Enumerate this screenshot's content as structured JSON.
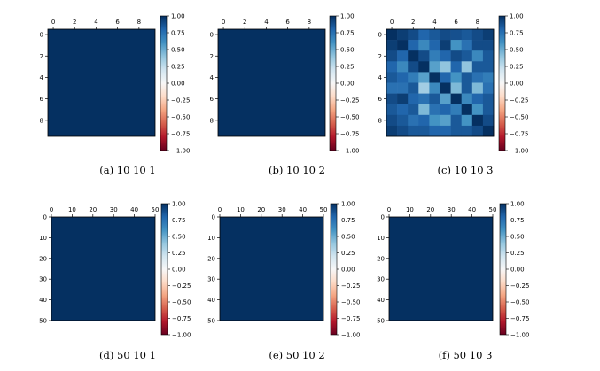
{
  "colormap": {
    "name": "RdBu",
    "stops": [
      "#67001f",
      "#b2182b",
      "#d6604d",
      "#f4a582",
      "#fddbc7",
      "#f7f7f7",
      "#d1e5f0",
      "#92c5de",
      "#4393c3",
      "#2166ac",
      "#053061"
    ]
  },
  "chart_data": [
    {
      "id": "a",
      "type": "heatmap",
      "caption": "(a) 10 10 1",
      "size": 10,
      "xticks": [
        "0",
        "2",
        "4",
        "6",
        "8"
      ],
      "yticks": [
        "0",
        "2",
        "4",
        "6",
        "8"
      ],
      "tick_values": [
        0,
        2,
        4,
        6,
        8
      ],
      "colorbar": {
        "min": -1.0,
        "max": 1.0,
        "ticks": [
          "1.00",
          "0.75",
          "0.50",
          "0.25",
          "0.00",
          "−0.25",
          "−0.50",
          "−0.75",
          "−1.00"
        ]
      },
      "fill_value": 1.0,
      "values": null
    },
    {
      "id": "b",
      "type": "heatmap",
      "caption": "(b) 10 10 2",
      "size": 10,
      "xticks": [
        "0",
        "2",
        "4",
        "6",
        "8"
      ],
      "yticks": [
        "0",
        "2",
        "4",
        "6",
        "8"
      ],
      "tick_values": [
        0,
        2,
        4,
        6,
        8
      ],
      "colorbar": {
        "min": -1.0,
        "max": 1.0,
        "ticks": [
          "1.00",
          "0.75",
          "0.50",
          "0.25",
          "0.00",
          "−0.25",
          "−0.50",
          "−0.75",
          "−1.00"
        ]
      },
      "fill_value": 1.0,
      "values": null
    },
    {
      "id": "c",
      "type": "heatmap",
      "caption": "(c) 10 10 3",
      "size": 10,
      "xticks": [
        "0",
        "2",
        "4",
        "6",
        "8"
      ],
      "yticks": [
        "0",
        "2",
        "4",
        "6",
        "8"
      ],
      "tick_values": [
        0,
        2,
        4,
        6,
        8
      ],
      "colorbar": {
        "min": -1.0,
        "max": 1.0,
        "ticks": [
          "1.00",
          "0.75",
          "0.50",
          "0.25",
          "0.00",
          "−0.25",
          "−0.50",
          "−0.75",
          "−1.00"
        ]
      },
      "fill_value": null,
      "values": [
        [
          1.0,
          0.95,
          0.9,
          0.8,
          0.85,
          0.9,
          0.88,
          0.85,
          0.9,
          0.95
        ],
        [
          0.95,
          1.0,
          0.8,
          0.65,
          0.8,
          0.95,
          0.6,
          0.75,
          0.9,
          0.9
        ],
        [
          0.9,
          0.8,
          1.0,
          0.9,
          0.7,
          0.8,
          0.9,
          0.85,
          0.65,
          0.85
        ],
        [
          0.8,
          0.65,
          0.9,
          1.0,
          0.55,
          0.4,
          0.8,
          0.4,
          0.85,
          0.85
        ],
        [
          0.85,
          0.8,
          0.7,
          0.55,
          1.0,
          0.8,
          0.6,
          0.85,
          0.75,
          0.7
        ],
        [
          0.75,
          0.75,
          0.85,
          0.35,
          0.65,
          1.0,
          0.45,
          0.85,
          0.45,
          0.75
        ],
        [
          0.9,
          0.95,
          0.8,
          0.75,
          0.85,
          0.55,
          1.0,
          0.65,
          0.8,
          0.85
        ],
        [
          0.85,
          0.8,
          0.85,
          0.45,
          0.75,
          0.8,
          0.7,
          1.0,
          0.6,
          0.85
        ],
        [
          0.9,
          0.85,
          0.75,
          0.8,
          0.6,
          0.55,
          0.85,
          0.6,
          1.0,
          0.9
        ],
        [
          0.95,
          0.9,
          0.85,
          0.85,
          0.8,
          0.8,
          0.85,
          0.85,
          0.9,
          1.0
        ]
      ]
    },
    {
      "id": "d",
      "type": "heatmap",
      "caption": "(d) 50 10 1",
      "size": 50,
      "xticks": [
        "0",
        "10",
        "20",
        "30",
        "40",
        "50"
      ],
      "yticks": [
        "0",
        "10",
        "20",
        "30",
        "40",
        "50"
      ],
      "tick_values": [
        0,
        10,
        20,
        30,
        40,
        50
      ],
      "colorbar": {
        "min": -1.0,
        "max": 1.0,
        "ticks": [
          "1.00",
          "0.75",
          "0.50",
          "0.25",
          "0.00",
          "−0.25",
          "−0.50",
          "−0.75",
          "−1.00"
        ]
      },
      "fill_value": 1.0,
      "values": null
    },
    {
      "id": "e",
      "type": "heatmap",
      "caption": "(e) 50 10 2",
      "size": 50,
      "xticks": [
        "0",
        "10",
        "20",
        "30",
        "40",
        "50"
      ],
      "yticks": [
        "0",
        "10",
        "20",
        "30",
        "40",
        "50"
      ],
      "tick_values": [
        0,
        10,
        20,
        30,
        40,
        50
      ],
      "colorbar": {
        "min": -1.0,
        "max": 1.0,
        "ticks": [
          "1.00",
          "0.75",
          "0.50",
          "0.25",
          "0.00",
          "−0.25",
          "−0.50",
          "−0.75",
          "−1.00"
        ]
      },
      "fill_value": 1.0,
      "values": null
    },
    {
      "id": "f",
      "type": "heatmap",
      "caption": "(f) 50 10 3",
      "size": 50,
      "xticks": [
        "0",
        "10",
        "20",
        "30",
        "40",
        "50"
      ],
      "yticks": [
        "0",
        "10",
        "20",
        "30",
        "40",
        "50"
      ],
      "tick_values": [
        0,
        10,
        20,
        30,
        40,
        50
      ],
      "colorbar": {
        "min": -1.0,
        "max": 1.0,
        "ticks": [
          "1.00",
          "0.75",
          "0.50",
          "0.25",
          "0.00",
          "−0.25",
          "−0.50",
          "−0.75",
          "−1.00"
        ]
      },
      "fill_value": 1.0,
      "values": null
    }
  ]
}
